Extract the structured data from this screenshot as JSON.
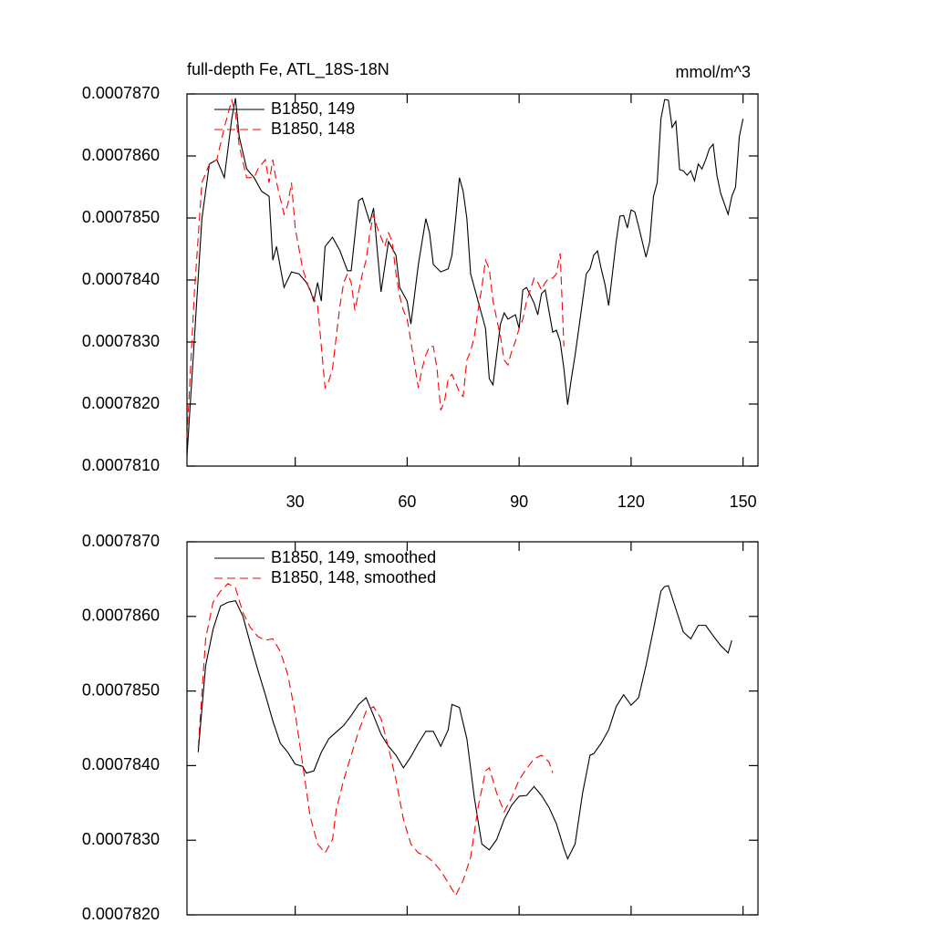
{
  "chart_data": [
    {
      "type": "line",
      "title": "full-depth Fe, ATL_18S-18N",
      "right_title": "mmol/m^3",
      "xlim": [
        1,
        154
      ],
      "xticks": [
        30,
        60,
        90,
        120,
        150
      ],
      "ylim": [
        0.000781,
        0.000787
      ],
      "yticks": [
        {
          "value": 0.000781,
          "label": "0.0007810"
        },
        {
          "value": 0.000782,
          "label": "0.0007820"
        },
        {
          "value": 0.000783,
          "label": "0.0007830"
        },
        {
          "value": 0.000784,
          "label": "0.0007840"
        },
        {
          "value": 0.000785,
          "label": "0.0007850"
        },
        {
          "value": 0.000786,
          "label": "0.0007860"
        },
        {
          "value": 0.000787,
          "label": "0.0007870"
        }
      ],
      "series": [
        {
          "name": "B1850, 149",
          "color": "#000000",
          "dash": false,
          "x": [
            1,
            3,
            5,
            7,
            9,
            11,
            13,
            14,
            15,
            17,
            19,
            21,
            23,
            24,
            25,
            27,
            29,
            31,
            33,
            34,
            35,
            36,
            37,
            38,
            40,
            42,
            44,
            45,
            47,
            48,
            50,
            51,
            52,
            53,
            55,
            57,
            58,
            60,
            61,
            63,
            64,
            65,
            66,
            67,
            69,
            71,
            72,
            73,
            74,
            75,
            76,
            77,
            79,
            81,
            82,
            83,
            85,
            86,
            87,
            89,
            90,
            91,
            92,
            94,
            95,
            96,
            97,
            99,
            100,
            101,
            102,
            103,
            104,
            105,
            106,
            107,
            108,
            109,
            110,
            111,
            112,
            113,
            114,
            115,
            116,
            117,
            118,
            119,
            120,
            121,
            122,
            123,
            124,
            125,
            126,
            127,
            128,
            129,
            130,
            131,
            132,
            133,
            134,
            135,
            136,
            137,
            138,
            139,
            140,
            141,
            142,
            143,
            144,
            146,
            147,
            148,
            149,
            150
          ],
          "values": [
            0.00078116,
            0.00078307,
            0.00078499,
            0.00078587,
            0.00078594,
            0.00078565,
            0.0007866,
            0.00078693,
            0.00078631,
            0.00078579,
            0.00078565,
            0.00078543,
            0.00078535,
            0.00078432,
            0.00078454,
            0.00078388,
            0.00078413,
            0.0007841,
            0.00078396,
            0.00078384,
            0.00078366,
            0.00078396,
            0.00078366,
            0.00078454,
            0.00078469,
            0.00078447,
            0.00078415,
            0.00078415,
            0.00078528,
            0.00078532,
            0.00078493,
            0.00078516,
            0.00078447,
            0.00078381,
            0.00078462,
            0.0007844,
            0.00078388,
            0.00078366,
            0.00078329,
            0.00078425,
            0.00078462,
            0.00078499,
            0.00078476,
            0.00078425,
            0.00078413,
            0.00078418,
            0.0007844,
            0.00078499,
            0.00078565,
            0.00078543,
            0.00078499,
            0.0007841,
            0.00078366,
            0.00078322,
            0.00078241,
            0.00078231,
            0.00078329,
            0.00078347,
            0.00078337,
            0.00078344,
            0.00078322,
            0.00078384,
            0.00078388,
            0.00078363,
            0.00078344,
            0.00078378,
            0.00078384,
            0.00078316,
            0.00078319,
            0.00078301,
            0.00078257,
            0.00078199,
            0.00078241,
            0.00078279,
            0.00078322,
            0.00078366,
            0.0007841,
            0.00078418,
            0.0007844,
            0.00078447,
            0.00078418,
            0.00078393,
            0.00078359,
            0.0007841,
            0.00078462,
            0.00078503,
            0.00078504,
            0.00078484,
            0.00078513,
            0.0007851,
            0.00078487,
            0.00078462,
            0.00078437,
            0.00078462,
            0.00078535,
            0.00078557,
            0.0007866,
            0.00078691,
            0.0007869,
            0.00078646,
            0.00078656,
            0.00078578,
            0.00078576,
            0.00078569,
            0.00078576,
            0.0007856,
            0.00078587,
            0.00078579,
            0.00078594,
            0.00078612,
            0.00078619,
            0.00078569,
            0.0007854,
            0.00078506,
            0.00078535,
            0.0007855,
            0.00078631,
            0.0007866
          ]
        },
        {
          "name": "B1850, 148",
          "color": "#ff0000",
          "dash": true,
          "x": [
            1,
            3,
            5,
            7,
            9,
            11,
            13,
            14,
            15,
            17,
            19,
            20,
            22,
            23,
            24,
            25,
            27,
            28,
            29,
            30,
            32,
            34,
            36,
            37,
            38,
            39,
            40,
            41,
            42,
            43,
            44,
            45,
            46,
            47,
            48,
            49,
            50,
            51,
            52,
            53,
            54,
            55,
            56,
            57,
            58,
            59,
            60,
            61,
            62,
            63,
            64,
            65,
            66,
            67,
            68,
            69,
            70,
            71,
            72,
            73,
            74,
            75,
            76,
            77,
            78,
            79,
            80,
            81,
            82,
            83,
            84,
            85,
            86,
            87,
            88,
            89,
            90,
            91,
            92,
            93,
            94,
            95,
            96,
            97,
            98,
            99,
            100,
            101,
            102
          ],
          "values": [
            0.00078146,
            0.00078381,
            0.00078557,
            0.00078587,
            0.00078594,
            0.00078646,
            0.0007869,
            0.00078668,
            0.00078616,
            0.00078565,
            0.00078565,
            0.00078579,
            0.00078594,
            0.00078557,
            0.00078594,
            0.00078557,
            0.00078506,
            0.00078521,
            0.00078557,
            0.00078484,
            0.00078418,
            0.00078381,
            0.00078359,
            0.00078293,
            0.00078226,
            0.00078237,
            0.00078257,
            0.00078309,
            0.00078359,
            0.00078396,
            0.0007841,
            0.00078396,
            0.00078351,
            0.00078381,
            0.0007841,
            0.00078432,
            0.00078476,
            0.00078506,
            0.00078484,
            0.00078469,
            0.00078454,
            0.00078476,
            0.00078462,
            0.0007841,
            0.00078374,
            0.00078351,
            0.00078337,
            0.00078301,
            0.00078263,
            0.00078226,
            0.00078257,
            0.00078279,
            0.00078293,
            0.00078293,
            0.00078257,
            0.0007819,
            0.00078204,
            0.00078241,
            0.00078248,
            0.00078234,
            0.00078219,
            0.00078212,
            0.00078271,
            0.00078285,
            0.00078309,
            0.00078351,
            0.00078388,
            0.00078432,
            0.00078418,
            0.00078366,
            0.00078337,
            0.00078309,
            0.00078271,
            0.00078263,
            0.00078285,
            0.00078301,
            0.00078322,
            0.00078337,
            0.00078366,
            0.00078384,
            0.00078403,
            0.00078396,
            0.00078384,
            0.00078396,
            0.00078403,
            0.00078403,
            0.0007841,
            0.00078443,
            0.00078293
          ]
        }
      ]
    },
    {
      "type": "line",
      "xtick_labels": false,
      "xlim": [
        1,
        154
      ],
      "xticks": [
        30,
        60,
        90,
        120,
        150
      ],
      "ylim": [
        0.000782,
        0.000787
      ],
      "yticks": [
        {
          "value": 0.000782,
          "label": "0.0007820"
        },
        {
          "value": 0.000783,
          "label": "0.0007830"
        },
        {
          "value": 0.000784,
          "label": "0.0007840"
        },
        {
          "value": 0.000785,
          "label": "0.0007850"
        },
        {
          "value": 0.000786,
          "label": "0.0007860"
        },
        {
          "value": 0.000787,
          "label": "0.0007870"
        }
      ],
      "series": [
        {
          "name": "B1850, 149, smoothed",
          "color": "#000000",
          "dash": false,
          "x": [
            4,
            6,
            8,
            10,
            12,
            14,
            16,
            18,
            20,
            22,
            24,
            26,
            28,
            30,
            32,
            33,
            35,
            37,
            39,
            41,
            43,
            45,
            47,
            49,
            51,
            53,
            55,
            57,
            59,
            61,
            63,
            65,
            67,
            69,
            71,
            72,
            74,
            76,
            78,
            80,
            82,
            84,
            86,
            88,
            90,
            92,
            94,
            96,
            98,
            100,
            102,
            103,
            105,
            107,
            109,
            110,
            112,
            114,
            116,
            118,
            120,
            122,
            124,
            126,
            128,
            129,
            130,
            132,
            134,
            136,
            138,
            140,
            142,
            144,
            146,
            147
          ],
          "values": [
            0.00078418,
            0.00078534,
            0.00078583,
            0.00078614,
            0.00078619,
            0.00078621,
            0.000786,
            0.00078563,
            0.00078528,
            0.00078495,
            0.0007846,
            0.0007843,
            0.00078418,
            0.00078402,
            0.00078399,
            0.0007839,
            0.00078393,
            0.00078418,
            0.00078436,
            0.00078445,
            0.00078454,
            0.00078467,
            0.00078482,
            0.00078491,
            0.00078467,
            0.00078442,
            0.00078426,
            0.00078414,
            0.00078397,
            0.00078412,
            0.0007843,
            0.00078446,
            0.00078446,
            0.00078426,
            0.00078448,
            0.00078482,
            0.00078478,
            0.00078436,
            0.00078357,
            0.00078295,
            0.00078287,
            0.00078301,
            0.00078328,
            0.00078347,
            0.00078359,
            0.0007836,
            0.00078372,
            0.0007836,
            0.00078344,
            0.00078322,
            0.00078289,
            0.00078275,
            0.00078295,
            0.00078363,
            0.00078414,
            0.00078416,
            0.0007843,
            0.00078448,
            0.00078479,
            0.00078495,
            0.00078481,
            0.00078491,
            0.00078534,
            0.00078583,
            0.00078634,
            0.0007864,
            0.00078641,
            0.0007861,
            0.00078579,
            0.0007857,
            0.00078588,
            0.00078588,
            0.00078574,
            0.00078561,
            0.00078551,
            0.00078568
          ]
        },
        {
          "name": "B1850, 148, smoothed",
          "color": "#ff0000",
          "dash": true,
          "x": [
            4,
            6,
            8,
            10,
            12,
            14,
            16,
            18,
            20,
            22,
            24,
            26,
            28,
            30,
            32,
            34,
            36,
            38,
            40,
            41,
            43,
            45,
            47,
            49,
            51,
            53,
            55,
            57,
            59,
            61,
            63,
            65,
            67,
            69,
            71,
            73,
            75,
            77,
            79,
            81,
            82,
            84,
            86,
            88,
            90,
            92,
            94,
            96,
            98,
            99
          ],
          "values": [
            0.00078424,
            0.0007857,
            0.00078619,
            0.00078634,
            0.00078644,
            0.00078638,
            0.00078605,
            0.00078585,
            0.00078573,
            0.00078568,
            0.0007857,
            0.00078553,
            0.00078522,
            0.0007847,
            0.00078402,
            0.00078332,
            0.00078295,
            0.00078283,
            0.00078301,
            0.00078341,
            0.00078381,
            0.00078414,
            0.00078446,
            0.00078473,
            0.00078479,
            0.00078463,
            0.00078424,
            0.00078381,
            0.00078328,
            0.00078295,
            0.00078283,
            0.00078279,
            0.00078271,
            0.00078259,
            0.00078243,
            0.00078226,
            0.00078246,
            0.00078277,
            0.00078344,
            0.00078393,
            0.00078397,
            0.00078363,
            0.00078338,
            0.00078357,
            0.00078381,
            0.00078396,
            0.00078409,
            0.00078414,
            0.00078405,
            0.0007839
          ]
        }
      ]
    }
  ]
}
